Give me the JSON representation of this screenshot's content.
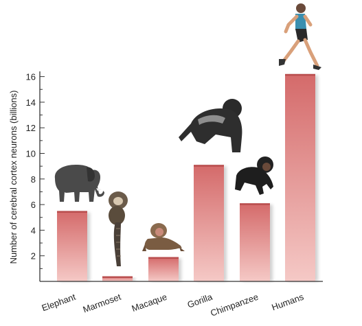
{
  "chart_data": {
    "type": "bar",
    "title": "",
    "xlabel": "",
    "ylabel": "Number of cerebral cortex neurons (billions)",
    "categories": [
      "Elephant",
      "Marmoset",
      "Macaque",
      "Gorilla",
      "Chimpanzee",
      "Humans"
    ],
    "values": [
      5.5,
      0.4,
      1.9,
      9.1,
      6.1,
      16.2
    ],
    "ylim": [
      0,
      16.3
    ],
    "yticks": [
      2,
      4,
      6,
      8,
      10,
      12,
      14,
      16
    ],
    "grid": false,
    "legend": "none",
    "animal_icons": [
      "elephant-icon",
      "marmoset-icon",
      "macaque-icon",
      "gorilla-icon",
      "chimpanzee-icon",
      "runner-icon"
    ],
    "colors": {
      "bar_top": "#d46a6a",
      "bar_bottom": "#f5c9c6",
      "axis": "#333333",
      "animal": "#3a3a3a"
    }
  }
}
